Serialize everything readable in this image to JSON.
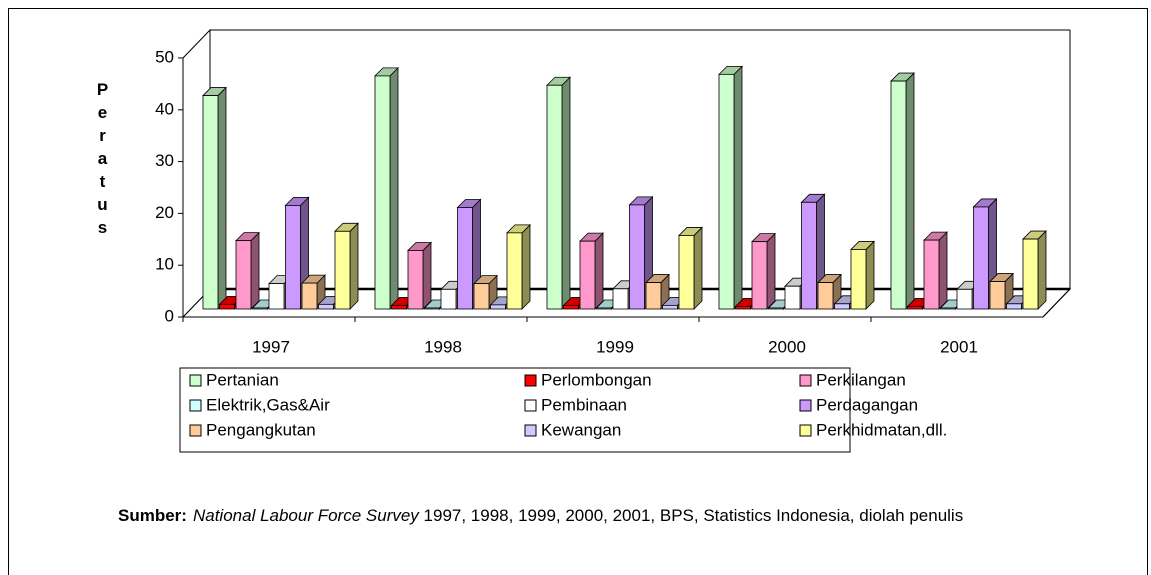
{
  "chart_data": {
    "type": "bar3d",
    "y_label": "Peratus",
    "categories": [
      "1997",
      "1998",
      "1999",
      "2000",
      "2001"
    ],
    "ylim": [
      0,
      50
    ],
    "yticks": [
      0,
      10,
      20,
      30,
      40,
      50
    ],
    "grid": false,
    "legend": "bottom",
    "series": [
      {
        "name": "Pertanian",
        "color": "#ccffcc",
        "values": [
          41.2,
          45.0,
          43.2,
          45.3,
          44.0
        ]
      },
      {
        "name": "Perlombongan",
        "color": "#ff0000",
        "values": [
          0.9,
          0.7,
          0.7,
          0.5,
          0.5
        ]
      },
      {
        "name": "Perkilangan",
        "color": "#ff99cc",
        "values": [
          13.2,
          11.3,
          13.1,
          13.0,
          13.3
        ]
      },
      {
        "name": "Elektrik,Gas&Air",
        "color": "#ccffff",
        "values": [
          0.2,
          0.2,
          0.2,
          0.2,
          0.2
        ]
      },
      {
        "name": "Pembinaan",
        "color": "#ffffff",
        "values": [
          4.9,
          3.8,
          3.9,
          4.4,
          3.8
        ]
      },
      {
        "name": "Perdagangan",
        "color": "#cc99ff",
        "values": [
          20.0,
          19.6,
          20.1,
          20.6,
          19.7
        ]
      },
      {
        "name": "Pengangkutan",
        "color": "#ffcc99",
        "values": [
          5.0,
          4.9,
          5.1,
          5.1,
          5.3
        ]
      },
      {
        "name": "Kewangan",
        "color": "#ccccff",
        "values": [
          0.9,
          0.8,
          0.7,
          1.0,
          1.0
        ]
      },
      {
        "name": "Perkhidmatan,dll.",
        "color": "#ffff99",
        "values": [
          15.0,
          14.7,
          14.2,
          11.5,
          13.5
        ]
      }
    ]
  },
  "source": {
    "label": "Sumber:",
    "title": "National Labour Force Survey",
    "text": "1997, 1998, 1999, 2000, 2001, BPS, Statistics Indonesia,  diolah penulis"
  }
}
